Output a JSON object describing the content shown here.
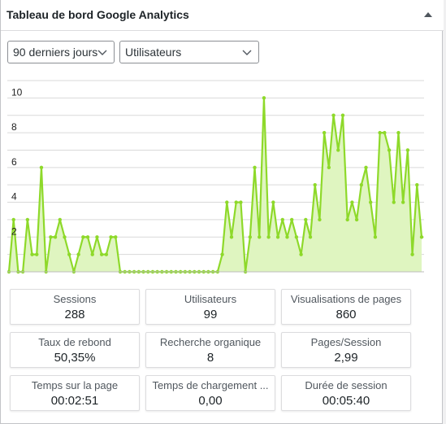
{
  "widget": {
    "title": "Tableau de bord Google Analytics"
  },
  "filters": {
    "period": "90 derniers jours",
    "metric": "Utilisateurs"
  },
  "colors": {
    "line": "#8ed92a",
    "fill": "#dff5c0",
    "grid": "#d9d9d9"
  },
  "chart_data": {
    "type": "area",
    "ylim": [
      0,
      11
    ],
    "yticks": [
      2,
      4,
      6,
      8,
      10
    ],
    "grid": true,
    "values": [
      0,
      3,
      0,
      0,
      3,
      1,
      1,
      6,
      0,
      2,
      2,
      3,
      2,
      1,
      0,
      1,
      2,
      2,
      1,
      2,
      1,
      1,
      2,
      2,
      0,
      0,
      0,
      0,
      0,
      0,
      0,
      0,
      0,
      0,
      0,
      0,
      0,
      0,
      0,
      0,
      0,
      0,
      0,
      0,
      0,
      0,
      1,
      4,
      2,
      4,
      4,
      0,
      2,
      6,
      2,
      10,
      2,
      4,
      2,
      3,
      2,
      3,
      2,
      1,
      3,
      2,
      5,
      3,
      8,
      6,
      9,
      7,
      9,
      3,
      4,
      3,
      5,
      6,
      4,
      2,
      8,
      8,
      7,
      4,
      8,
      4,
      7,
      1,
      5,
      2
    ]
  },
  "stats": [
    {
      "label": "Sessions",
      "value": "288"
    },
    {
      "label": "Utilisateurs",
      "value": "99"
    },
    {
      "label": "Visualisations de pages",
      "value": "860"
    },
    {
      "label": "Taux de rebond",
      "value": "50,35%"
    },
    {
      "label": "Recherche organique",
      "value": "8"
    },
    {
      "label": "Pages/Session",
      "value": "2,99"
    },
    {
      "label": "Temps sur la page",
      "value": "00:02:51"
    },
    {
      "label": "Temps de chargement ...",
      "value": "0,00"
    },
    {
      "label": "Durée de session",
      "value": "00:05:40"
    }
  ]
}
